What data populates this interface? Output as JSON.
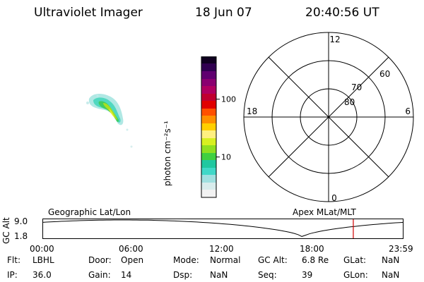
{
  "header": {
    "instrument": "Ultraviolet Imager",
    "date": "18 Jun 07",
    "time": "20:40:56 UT"
  },
  "colorbar": {
    "label": "photon cm⁻²s⁻¹",
    "ticks": [
      {
        "label": "100",
        "value": 100
      },
      {
        "label": "10",
        "value": 10
      }
    ],
    "colors": [
      "#f2f2f2",
      "#d8ecec",
      "#a0e0e0",
      "#40d8c8",
      "#20c8a0",
      "#40d040",
      "#90e020",
      "#d8f020",
      "#fff080",
      "#ffd000",
      "#ff9000",
      "#ff5000",
      "#e00000",
      "#c00030",
      "#b00060",
      "#8a0070",
      "#600070",
      "#300050",
      "#100020"
    ]
  },
  "polar": {
    "labels": {
      "top": "12",
      "bottom": "0",
      "left": "18",
      "right": "6"
    },
    "latitude_labels": [
      {
        "label": "60"
      },
      {
        "label": "70"
      },
      {
        "label": "80"
      }
    ]
  },
  "timeline": {
    "left_title": "Geographic Lat/Lon",
    "right_title": "Apex MLat/MLT",
    "axis_label": "GC Alt",
    "y_ticks": [
      "9.0",
      "1.8"
    ],
    "x_ticks": [
      "00:00",
      "06:00",
      "12:00",
      "18:00",
      "23:59"
    ],
    "current_time_hours": 20.68
  },
  "info": {
    "row1": [
      {
        "key": "Flt:",
        "val": "LBHL"
      },
      {
        "key": "Door:",
        "val": "Open"
      },
      {
        "key": "Mode:",
        "val": "Normal"
      },
      {
        "key": "GC Alt:",
        "val": "6.8 Re"
      },
      {
        "key": "GLat:",
        "val": "NaN"
      }
    ],
    "row2": [
      {
        "key": "IP:",
        "val": "36.0"
      },
      {
        "key": "Gain:",
        "val": "14"
      },
      {
        "key": "Dsp:",
        "val": "NaN"
      },
      {
        "key": "Seq:",
        "val": "39"
      },
      {
        "key": "GLon:",
        "val": "NaN"
      }
    ]
  }
}
